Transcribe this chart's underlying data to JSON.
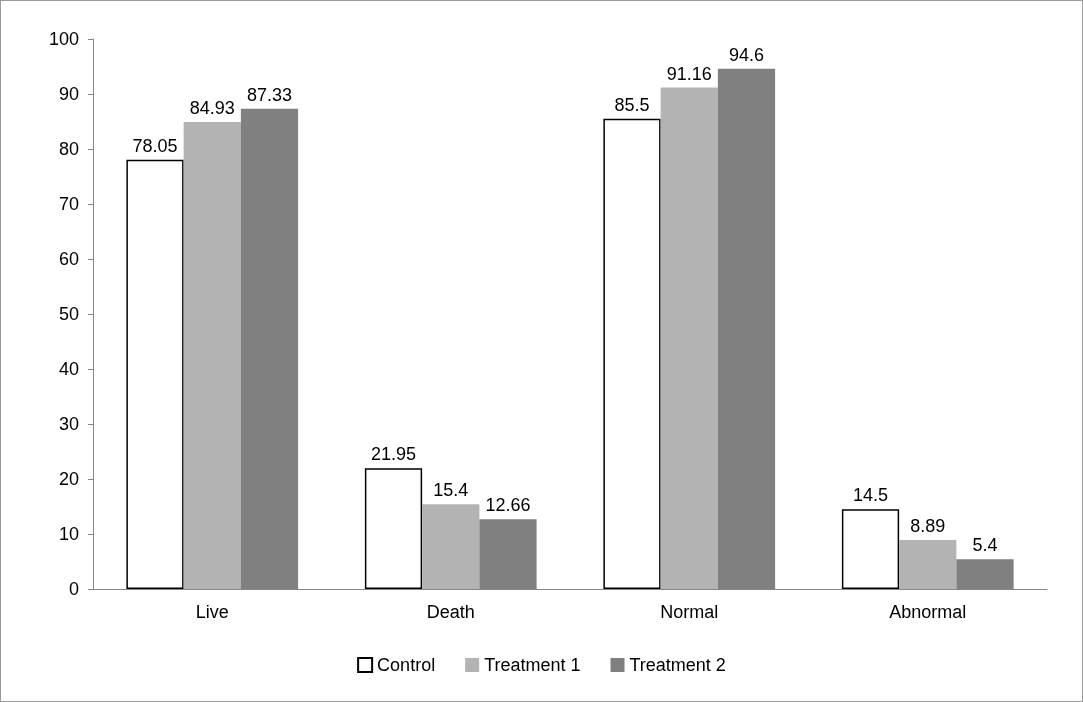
{
  "chart_data": {
    "type": "bar",
    "categories": [
      "Live",
      "Death",
      "Normal",
      "Abnormal"
    ],
    "series": [
      {
        "name": "Control",
        "color": "#ffffff",
        "values": [
          78.05,
          21.95,
          85.5,
          14.5
        ]
      },
      {
        "name": "Treatment 1",
        "color": "#b3b3b3",
        "values": [
          84.93,
          15.4,
          91.16,
          8.89
        ]
      },
      {
        "name": "Treatment 2",
        "color": "#808080",
        "values": [
          87.33,
          12.66,
          94.6,
          5.4
        ]
      }
    ],
    "ylim": [
      0,
      100
    ],
    "yticks": [
      0,
      10,
      20,
      30,
      40,
      50,
      60,
      70,
      80,
      90,
      100
    ],
    "grid": false,
    "legend": "bottom",
    "data_labels": true
  }
}
